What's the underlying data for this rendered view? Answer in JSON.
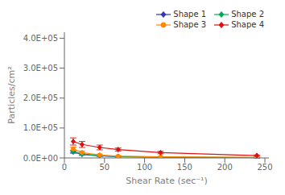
{
  "chart_data": {
    "type": "line",
    "x": [
      11,
      22,
      44,
      67,
      120,
      240
    ],
    "series": [
      {
        "name": "Shape 1",
        "color": "#3333bb",
        "marker": "diamond",
        "values": [
          20000,
          12000,
          7000,
          4000,
          2000,
          500
        ],
        "errors": [
          4000,
          3000,
          2000,
          1500,
          1000,
          500
        ]
      },
      {
        "name": "Shape 2",
        "color": "#00aa55",
        "marker": "diamond",
        "values": [
          22000,
          13000,
          8000,
          5000,
          3000,
          1000
        ],
        "errors": [
          4000,
          3000,
          2000,
          1500,
          1000,
          500
        ]
      },
      {
        "name": "Shape 3",
        "color": "#ff8800",
        "marker": "circle",
        "values": [
          30000,
          18000,
          10000,
          6000,
          3500,
          2000
        ],
        "errors": [
          6000,
          5000,
          3000,
          2000,
          1500,
          800
        ]
      },
      {
        "name": "Shape 4",
        "color": "#dd1111",
        "marker": "diamond",
        "values": [
          55000,
          45000,
          35000,
          28000,
          18000,
          8000
        ],
        "errors": [
          12000,
          10000,
          8000,
          5000,
          4000,
          2000
        ]
      }
    ],
    "xlabel": "Shear Rate (sec⁻¹)",
    "ylabel": "Particles/cm²",
    "xlim": [
      0,
      255
    ],
    "xticks": [
      0,
      50,
      100,
      150,
      200,
      250
    ],
    "ylim": [
      0,
      420000
    ],
    "yticks": [
      {
        "value": 0,
        "label": "0.0E+00"
      },
      {
        "value": 100000,
        "label": "1.0E+05"
      },
      {
        "value": 200000,
        "label": "2.0E+05"
      },
      {
        "value": 300000,
        "label": "3.0E+05"
      },
      {
        "value": 400000,
        "label": "4.0E+05"
      }
    ],
    "grid": false,
    "legend": "upper right"
  }
}
